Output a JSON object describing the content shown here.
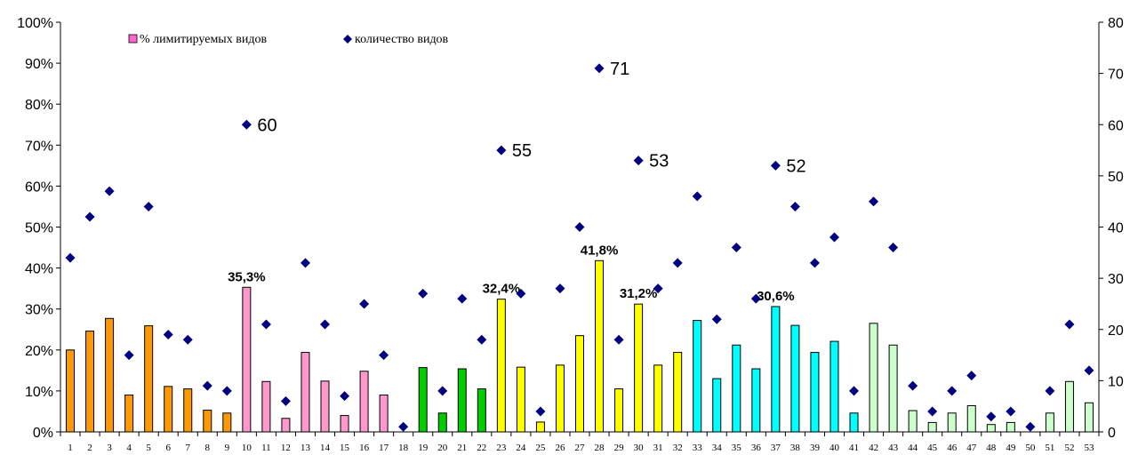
{
  "chart_data": {
    "type": "bar",
    "categories": [
      "1",
      "2",
      "3",
      "4",
      "5",
      "6",
      "7",
      "8",
      "9",
      "10",
      "11",
      "12",
      "13",
      "14",
      "15",
      "16",
      "17",
      "18",
      "19",
      "20",
      "21",
      "22",
      "23",
      "24",
      "25",
      "26",
      "27",
      "28",
      "29",
      "30",
      "31",
      "32",
      "33",
      "34",
      "35",
      "36",
      "37",
      "38",
      "39",
      "40",
      "41",
      "42",
      "43",
      "44",
      "45",
      "46",
      "47",
      "48",
      "49",
      "50",
      "51",
      "52",
      "53"
    ],
    "y_left": {
      "min": 0,
      "max": 100,
      "step": 10,
      "tick_labels": [
        "0%",
        "10%",
        "20%",
        "30%",
        "40%",
        "50%",
        "60%",
        "70%",
        "80%",
        "90%",
        "100%"
      ]
    },
    "y_right": {
      "min": 0,
      "max": 80,
      "step": 10,
      "tick_labels": [
        "0",
        "10",
        "20",
        "30",
        "40",
        "50",
        "60",
        "70",
        "80"
      ]
    },
    "legend": {
      "position": "top-left",
      "items": [
        {
          "label": "% лимитируемых видов",
          "color": "#ff66cc",
          "marker": "square"
        },
        {
          "label": "количество видов",
          "color": "#000080",
          "marker": "diamond"
        }
      ]
    },
    "series": [
      {
        "name": "% лимитируемых видов",
        "kind": "bar",
        "axis": "left",
        "values": [
          20,
          24.6,
          27.7,
          9,
          25.9,
          11.1,
          10.5,
          5.3,
          4.6,
          35.3,
          12.3,
          3.3,
          19.4,
          12.4,
          4,
          14.8,
          9,
          0,
          15.7,
          4.6,
          15.4,
          10.5,
          32.4,
          15.8,
          2.4,
          16.3,
          23.5,
          41.8,
          10.5,
          31.2,
          16.3,
          19.4,
          27.2,
          13,
          21.2,
          15.4,
          30.6,
          26,
          19.4,
          22.1,
          4.6,
          26.5,
          21.2,
          5.2,
          2.3,
          4.6,
          6.4,
          1.8,
          2.3,
          0,
          4.6,
          12.3,
          7.1
        ],
        "colors": [
          "#ff9900",
          "#ff9900",
          "#ff9900",
          "#ff9900",
          "#ff9900",
          "#ff9900",
          "#ff9900",
          "#ff9900",
          "#ff9900",
          "#ff99cc",
          "#ff99cc",
          "#ff99cc",
          "#ff99cc",
          "#ff99cc",
          "#ff99cc",
          "#ff99cc",
          "#ff99cc",
          "#ff99cc",
          "#00cc00",
          "#00cc00",
          "#00cc00",
          "#00cc00",
          "#ffff00",
          "#ffff00",
          "#ffff00",
          "#ffff00",
          "#ffff00",
          "#ffff00",
          "#ffff00",
          "#ffff00",
          "#ffff00",
          "#ffff00",
          "#00ffff",
          "#00ffff",
          "#00ffff",
          "#00ffff",
          "#00ffff",
          "#00ffff",
          "#00ffff",
          "#00ffff",
          "#00ffff",
          "#ccffcc",
          "#ccffcc",
          "#ccffcc",
          "#ccffcc",
          "#ccffcc",
          "#ccffcc",
          "#ccffcc",
          "#ccffcc",
          "#ccffcc",
          "#ccffcc",
          "#ccffcc",
          "#ccffcc"
        ],
        "data_labels": [
          {
            "index": 10,
            "text": "35,3%"
          },
          {
            "index": 23,
            "text": "32,4%"
          },
          {
            "index": 28,
            "text": "41,8%"
          },
          {
            "index": 30,
            "text": "31,2%"
          },
          {
            "index": 37,
            "text": "30,6%"
          }
        ]
      },
      {
        "name": "количество видов",
        "kind": "scatter",
        "marker": "diamond",
        "axis": "right",
        "color": "#000080",
        "values": [
          34,
          42,
          47,
          15,
          44,
          19,
          18,
          9,
          8,
          60,
          21,
          6,
          33,
          21,
          7,
          25,
          15,
          1,
          27,
          8,
          26,
          18,
          55,
          27,
          4,
          28,
          40,
          71,
          18,
          53,
          28,
          33,
          46,
          22,
          36,
          26,
          52,
          44,
          33,
          38,
          8,
          45,
          36,
          9,
          4,
          8,
          11,
          3,
          4,
          1,
          8,
          21,
          12
        ],
        "data_labels": [
          {
            "index": 10,
            "text": "60"
          },
          {
            "index": 23,
            "text": "55"
          },
          {
            "index": 28,
            "text": "71"
          },
          {
            "index": 30,
            "text": "53"
          },
          {
            "index": 37,
            "text": "52"
          }
        ]
      }
    ]
  }
}
